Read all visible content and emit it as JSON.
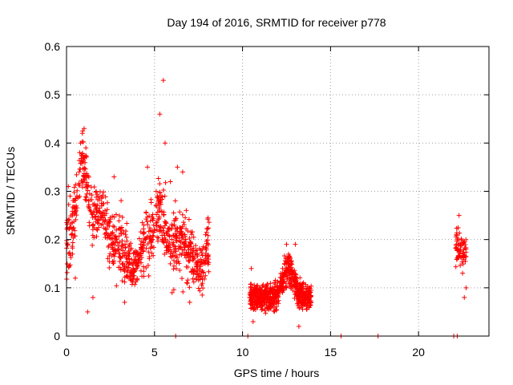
{
  "chart_data": {
    "type": "scatter",
    "title": "Day 194 of 2016, SRMTID for receiver p778",
    "xlabel": "GPS time / hours",
    "ylabel": "SRMTID / TECUs",
    "xlim": [
      0,
      24
    ],
    "ylim": [
      0,
      0.6
    ],
    "x_ticks": [
      0,
      5,
      10,
      15,
      20
    ],
    "x_tick_labels": [
      "0",
      "5",
      "10",
      "15",
      "20"
    ],
    "y_ticks": [
      0,
      0.1,
      0.2,
      0.3,
      0.4,
      0.5,
      0.6
    ],
    "y_tick_labels": [
      "0",
      "0.1",
      "0.2",
      "0.3",
      "0.4",
      "0.5",
      "0.6"
    ],
    "grid": true,
    "marker": "+",
    "marker_color": "#ff0000",
    "series": [
      {
        "name": "SRMTID",
        "clusters": [
          {
            "x": [
              0.0,
              8.1
            ],
            "y_center": 0.19,
            "y_spread": 0.07,
            "count": 900,
            "peaks": [
              {
                "x": 0.9,
                "y": 0.36,
                "spread": 0.05
              },
              {
                "x": 1.9,
                "y": 0.27,
                "spread": 0.04
              },
              {
                "x": 5.3,
                "y": 0.26,
                "spread": 0.06
              },
              {
                "x": 3.8,
                "y": 0.14,
                "spread": 0.03
              },
              {
                "x": 7.5,
                "y": 0.14,
                "spread": 0.04
              }
            ]
          },
          {
            "x": [
              10.4,
              13.9
            ],
            "y_center": 0.08,
            "y_spread": 0.025,
            "count": 700,
            "peaks": [
              {
                "x": 12.6,
                "y": 0.14,
                "spread": 0.03
              }
            ]
          },
          {
            "x": [
              22.1,
              22.7
            ],
            "y_center": 0.18,
            "y_spread": 0.035,
            "count": 70,
            "peaks": []
          }
        ],
        "points": [
          [
            0.1,
            0.31
          ],
          [
            0.2,
            0.29
          ],
          [
            0.5,
            0.12
          ],
          [
            0.8,
            0.4
          ],
          [
            0.9,
            0.42
          ],
          [
            1.0,
            0.43
          ],
          [
            1.1,
            0.39
          ],
          [
            1.2,
            0.05
          ],
          [
            1.5,
            0.08
          ],
          [
            2.7,
            0.33
          ],
          [
            3.3,
            0.07
          ],
          [
            4.6,
            0.35
          ],
          [
            5.3,
            0.46
          ],
          [
            5.5,
            0.53
          ],
          [
            5.6,
            0.4
          ],
          [
            5.9,
            0.32
          ],
          [
            6.0,
            0.09
          ],
          [
            6.3,
            0.35
          ],
          [
            6.6,
            0.34
          ],
          [
            7.0,
            0.07
          ],
          [
            7.9,
            0.21
          ],
          [
            10.5,
            0.14
          ],
          [
            10.6,
            0.03
          ],
          [
            12.5,
            0.19
          ],
          [
            13.0,
            0.19
          ],
          [
            13.2,
            0.02
          ],
          [
            13.8,
            0.1
          ],
          [
            22.3,
            0.25
          ],
          [
            22.6,
            0.08
          ],
          [
            22.7,
            0.1
          ],
          [
            6.2,
            0.0
          ],
          [
            10.3,
            0.0
          ],
          [
            15.6,
            0.0
          ],
          [
            17.7,
            0.0
          ],
          [
            22.0,
            0.0
          ],
          [
            22.2,
            0.0
          ]
        ]
      }
    ]
  }
}
